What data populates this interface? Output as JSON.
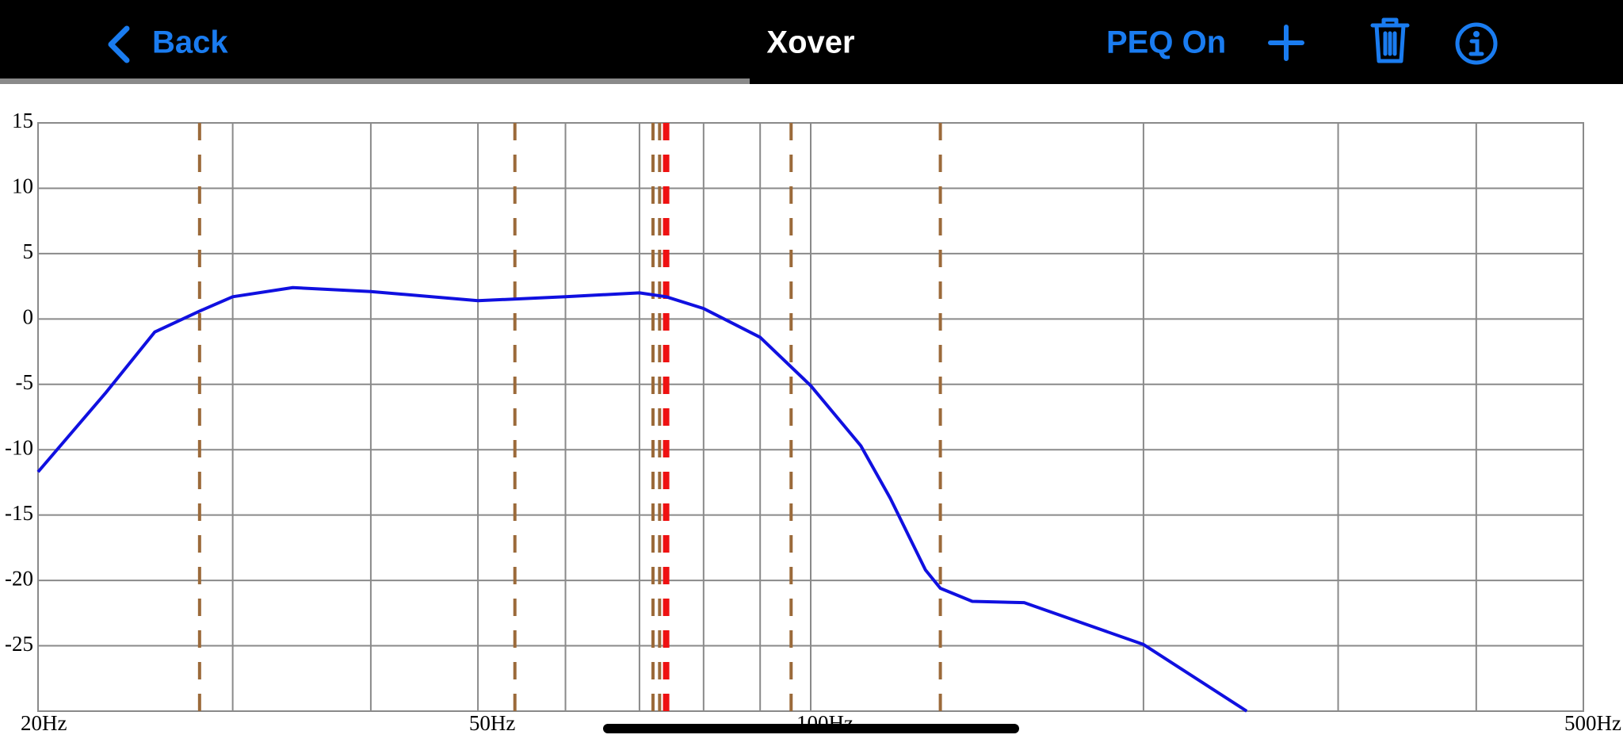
{
  "header": {
    "back": "Back",
    "title": "Xover",
    "peq": "PEQ On"
  },
  "chart_data": {
    "type": "line",
    "x": [
      20,
      23,
      25.5,
      28,
      30,
      34,
      40,
      50,
      60,
      70,
      74,
      80,
      90,
      100,
      111,
      118,
      127,
      131,
      140,
      156,
      200,
      248
    ],
    "series": [
      {
        "color": "#1010e0",
        "values": [
          -11.7,
          -5.7,
          -1,
          0.6,
          1.7,
          2.4,
          2.1,
          1.4,
          1.7,
          2,
          1.7,
          0.8,
          -1.4,
          -5.1,
          -9.7,
          -13.7,
          -19.2,
          -20.6,
          -21.6,
          -21.7,
          -24.9,
          -30
        ]
      }
    ],
    "xlim": [
      20,
      500
    ],
    "xscale": "log",
    "xticks": [
      {
        "value": 20,
        "label": "20Hz"
      },
      {
        "value": 50,
        "label": "50Hz"
      },
      {
        "value": 100,
        "label": "100Hz"
      },
      {
        "value": 500,
        "label": "500Hz"
      }
    ],
    "x_minor_ticks": [
      30,
      40,
      60,
      70,
      80,
      90,
      200,
      300,
      400
    ],
    "ylim": [
      -30,
      15
    ],
    "yticks": [
      -25,
      -20,
      -15,
      -10,
      -5,
      0,
      5,
      10,
      15
    ],
    "grid": true,
    "markers": [
      {
        "x": 28,
        "color": "#9b6a3a"
      },
      {
        "x": 54,
        "color": "#9b6a3a"
      },
      {
        "x": 72,
        "color": "#9b6a3a"
      },
      {
        "x": 73,
        "color": "#9b6a3a"
      },
      {
        "x": 96,
        "color": "#9b6a3a"
      },
      {
        "x": 131,
        "color": "#9b6a3a"
      },
      {
        "x": 74,
        "color": "#ee1111"
      }
    ]
  }
}
